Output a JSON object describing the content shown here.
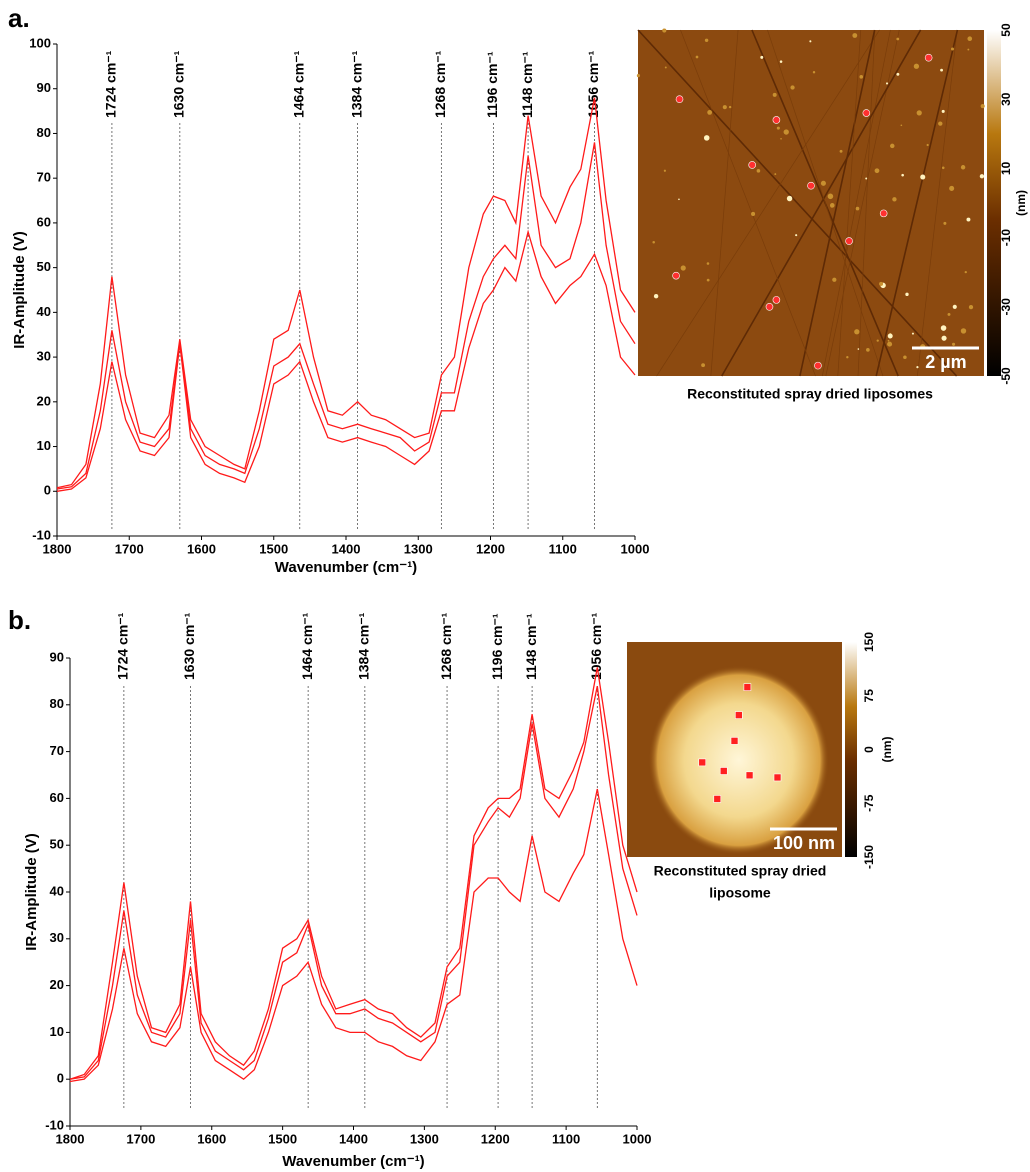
{
  "chart_data": [
    {
      "type": "line",
      "panel_label": "a.",
      "ylabel": "IR-Amplitude (V)",
      "xlabel": "Wavenumber (cm⁻¹)",
      "xlim": [
        1800,
        1000
      ],
      "xticks": [
        1800,
        1700,
        1600,
        1500,
        1400,
        1300,
        1200,
        1100,
        1000
      ],
      "ylim": [
        -10,
        100
      ],
      "yticks": [
        -10,
        0,
        10,
        20,
        30,
        40,
        50,
        60,
        70,
        80,
        90,
        100
      ],
      "annotations": [
        {
          "value": 1724,
          "label": "1724 cm⁻¹"
        },
        {
          "value": 1630,
          "label": "1630 cm⁻¹"
        },
        {
          "value": 1464,
          "label": "1464 cm⁻¹"
        },
        {
          "value": 1384,
          "label": "1384 cm⁻¹"
        },
        {
          "value": 1268,
          "label": "1268 cm⁻¹"
        },
        {
          "value": 1196,
          "label": "1196 cm⁻¹"
        },
        {
          "value": 1148,
          "label": "1148 cm⁻¹"
        },
        {
          "value": 1056,
          "label": "1056 cm⁻¹"
        }
      ],
      "x": [
        1800,
        1780,
        1760,
        1740,
        1724,
        1705,
        1685,
        1665,
        1645,
        1630,
        1615,
        1595,
        1575,
        1555,
        1540,
        1520,
        1500,
        1480,
        1464,
        1445,
        1425,
        1405,
        1384,
        1365,
        1345,
        1325,
        1305,
        1285,
        1268,
        1250,
        1230,
        1210,
        1196,
        1180,
        1165,
        1148,
        1130,
        1110,
        1090,
        1075,
        1056,
        1040,
        1020,
        1000
      ],
      "series": [
        {
          "color": "#ff1a1a",
          "values": [
            0.8,
            1.5,
            6,
            24,
            48,
            26,
            13,
            12,
            17,
            34,
            16,
            10,
            8,
            6,
            5,
            18,
            34,
            36,
            45,
            30,
            18,
            17,
            20,
            17,
            16,
            14,
            12,
            13,
            26,
            30,
            50,
            62,
            66,
            65,
            60,
            84,
            66,
            60,
            68,
            72,
            88,
            65,
            45,
            40
          ]
        },
        {
          "color": "#ff1a1a",
          "values": [
            0.5,
            1,
            4,
            18,
            36,
            20,
            11,
            10,
            14,
            33,
            14,
            8,
            6,
            5,
            4,
            14,
            28,
            30,
            33,
            24,
            15,
            14,
            15,
            14,
            13,
            12,
            9,
            11,
            22,
            22,
            38,
            48,
            52,
            55,
            52,
            75,
            55,
            50,
            52,
            60,
            78,
            55,
            38,
            33
          ]
        },
        {
          "color": "#ff1a1a",
          "values": [
            0,
            0.5,
            3,
            14,
            29,
            16,
            9,
            8,
            12,
            33,
            12,
            6,
            4,
            3,
            2,
            10,
            24,
            26,
            29,
            20,
            12,
            11,
            12,
            11,
            10,
            8,
            6,
            9,
            18,
            18,
            32,
            42,
            45,
            50,
            47,
            58,
            48,
            42,
            46,
            48,
            53,
            46,
            30,
            26
          ]
        }
      ],
      "image": {
        "caption_lines": [
          "Reconstituted spray dried liposomes"
        ],
        "scale_bar": "2 µm",
        "colorbar_label": "(nm)",
        "colorbar_lim": [
          -50,
          50
        ],
        "colorbar_ticks": [
          50,
          30,
          10,
          -10,
          -30,
          -50
        ]
      }
    },
    {
      "type": "line",
      "panel_label": "b.",
      "ylabel": "IR-Amplitude (V)",
      "xlabel": "Wavenumber (cm⁻¹)",
      "xlim": [
        1800,
        1000
      ],
      "xticks": [
        1800,
        1700,
        1600,
        1500,
        1400,
        1300,
        1200,
        1100,
        1000
      ],
      "ylim": [
        -10,
        90
      ],
      "yticks": [
        -10,
        0,
        10,
        20,
        30,
        40,
        50,
        60,
        70,
        80,
        90
      ],
      "annotations": [
        {
          "value": 1724,
          "label": "1724 cm⁻¹"
        },
        {
          "value": 1630,
          "label": "1630 cm⁻¹"
        },
        {
          "value": 1464,
          "label": "1464 cm⁻¹"
        },
        {
          "value": 1384,
          "label": "1384 cm⁻¹"
        },
        {
          "value": 1268,
          "label": "1268 cm⁻¹"
        },
        {
          "value": 1196,
          "label": "1196 cm⁻¹"
        },
        {
          "value": 1148,
          "label": "1148 cm⁻¹"
        },
        {
          "value": 1056,
          "label": "1056 cm⁻¹"
        }
      ],
      "x": [
        1800,
        1780,
        1760,
        1740,
        1724,
        1705,
        1685,
        1665,
        1645,
        1630,
        1615,
        1595,
        1575,
        1555,
        1540,
        1520,
        1500,
        1480,
        1464,
        1445,
        1425,
        1405,
        1384,
        1365,
        1345,
        1325,
        1305,
        1285,
        1268,
        1250,
        1230,
        1210,
        1196,
        1180,
        1165,
        1148,
        1130,
        1110,
        1090,
        1075,
        1056,
        1040,
        1020,
        1000
      ],
      "series": [
        {
          "color": "#ff1a1a",
          "values": [
            0,
            1,
            5,
            25,
            42,
            22,
            11,
            10,
            16,
            38,
            14,
            8,
            5,
            3,
            6,
            15,
            28,
            30,
            34,
            22,
            15,
            16,
            17,
            15,
            14,
            11,
            9,
            12,
            24,
            28,
            52,
            58,
            60,
            60,
            62,
            78,
            62,
            60,
            66,
            72,
            88,
            72,
            50,
            40
          ]
        },
        {
          "color": "#ff1a1a",
          "values": [
            0,
            0.5,
            4,
            20,
            36,
            18,
            10,
            9,
            14,
            34,
            12,
            6,
            4,
            2,
            4,
            13,
            25,
            27,
            33,
            20,
            14,
            14,
            15,
            13,
            12,
            10,
            8,
            10,
            22,
            25,
            50,
            55,
            58,
            56,
            60,
            76,
            60,
            56,
            62,
            70,
            84,
            65,
            45,
            35
          ]
        },
        {
          "color": "#ff1a1a",
          "values": [
            -0.5,
            0,
            3,
            15,
            28,
            14,
            8,
            7,
            11,
            24,
            10,
            4,
            2,
            0,
            2,
            10,
            20,
            22,
            25,
            16,
            11,
            10,
            10,
            8,
            7,
            5,
            4,
            8,
            16,
            18,
            40,
            43,
            43,
            40,
            38,
            52,
            40,
            38,
            44,
            48,
            62,
            48,
            30,
            20
          ]
        }
      ],
      "image": {
        "caption_lines": [
          "Reconstituted spray dried",
          "liposome"
        ],
        "scale_bar": "100 nm",
        "colorbar_label": "(nm)",
        "colorbar_lim": [
          -150,
          150
        ],
        "colorbar_ticks": [
          150,
          75,
          0,
          -75,
          -150
        ]
      }
    }
  ]
}
